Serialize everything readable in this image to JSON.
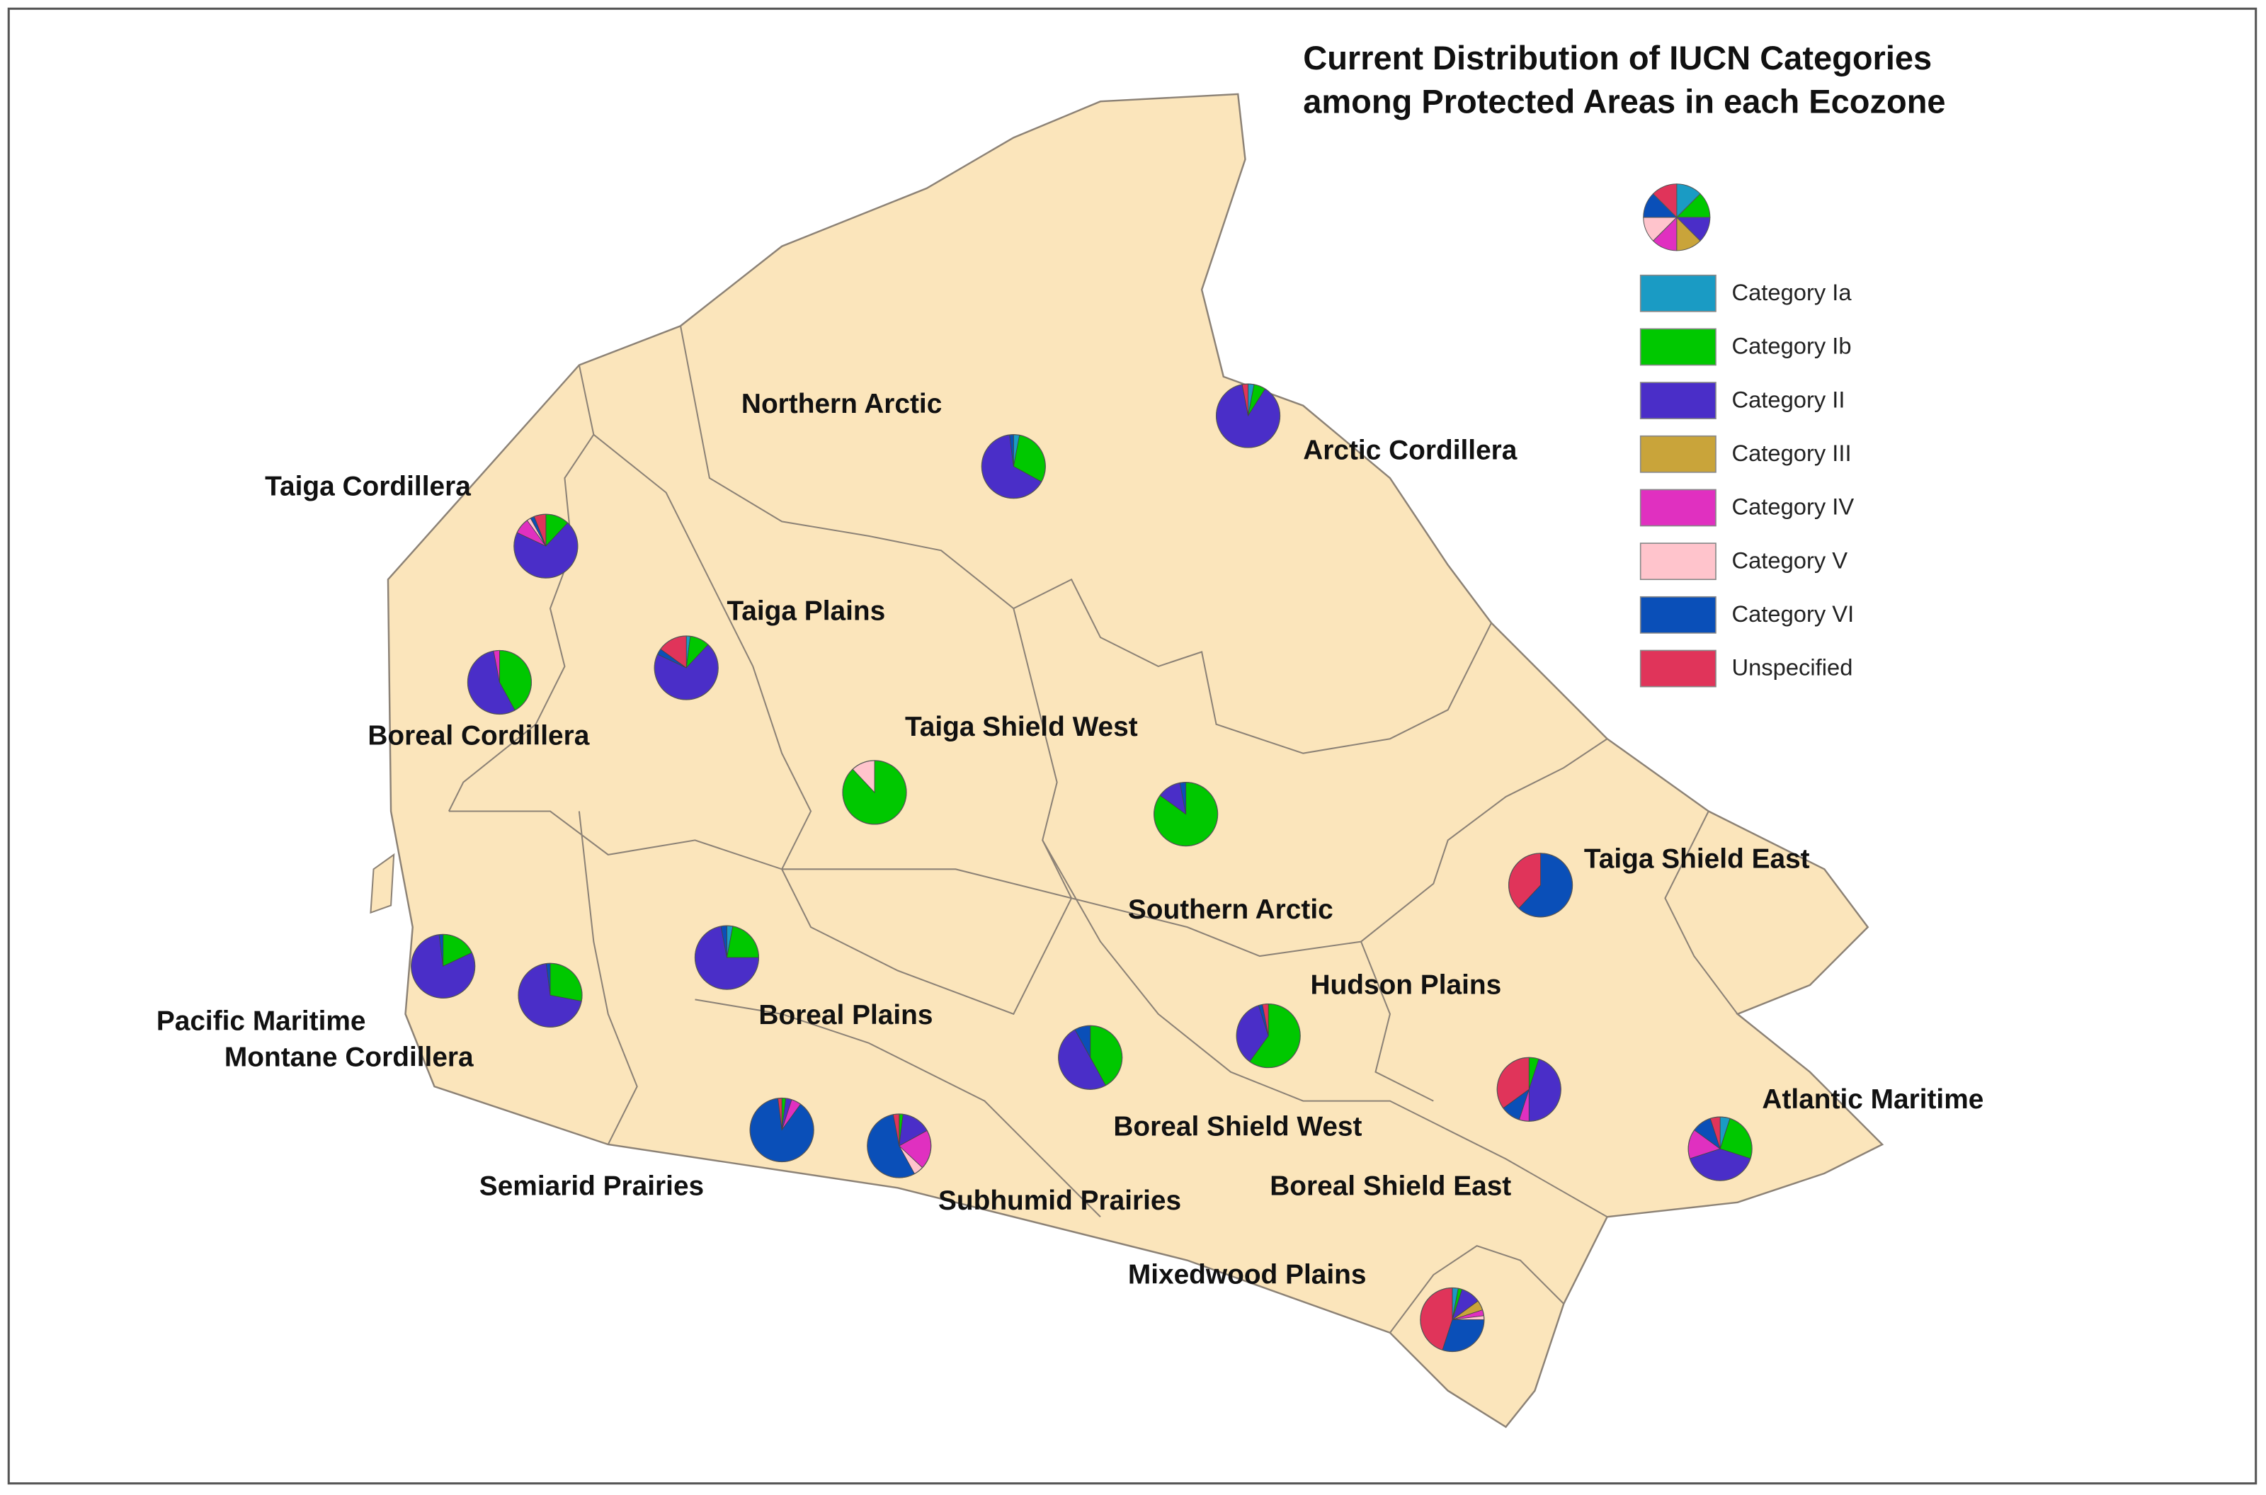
{
  "title": [
    "Current Distribution of IUCN Categories",
    "among Protected Areas in each Ecozone"
  ],
  "legend": [
    {
      "label": "Category Ia",
      "color": "#1a9bc4"
    },
    {
      "label": "Category Ib",
      "color": "#00c800"
    },
    {
      "label": "Category II",
      "color": "#4a2ec8"
    },
    {
      "label": "Category III",
      "color": "#c9a43a"
    },
    {
      "label": "Category IV",
      "color": "#e030c0"
    },
    {
      "label": "Category V",
      "color": "#ffc4cc"
    },
    {
      "label": "Category VI",
      "color": "#0a4fb8"
    },
    {
      "label": "Unspecified",
      "color": "#e0345a"
    }
  ],
  "ecozones": [
    {
      "name": "Northern Arctic",
      "shares": [
        3,
        30,
        65,
        0,
        0,
        0,
        2,
        0
      ]
    },
    {
      "name": "Arctic Cordillera",
      "shares": [
        3,
        6,
        88,
        0,
        0,
        0,
        0,
        3
      ]
    },
    {
      "name": "Taiga Cordillera",
      "shares": [
        0,
        12,
        70,
        0,
        8,
        2,
        2,
        6
      ]
    },
    {
      "name": "Taiga Plains",
      "shares": [
        2,
        10,
        70,
        0,
        0,
        0,
        3,
        15
      ]
    },
    {
      "name": "Boreal Cordillera",
      "shares": [
        0,
        42,
        55,
        0,
        3,
        0,
        0,
        0
      ]
    },
    {
      "name": "Taiga Shield West",
      "shares": [
        0,
        88,
        0,
        0,
        0,
        12,
        0,
        0
      ]
    },
    {
      "name": "Southern Arctic",
      "shares": [
        0,
        85,
        12,
        0,
        0,
        0,
        3,
        0
      ]
    },
    {
      "name": "Taiga Shield East",
      "shares": [
        0,
        0,
        0,
        0,
        0,
        0,
        62,
        38
      ]
    },
    {
      "name": "Pacific Maritime",
      "shares": [
        0,
        18,
        80,
        0,
        0,
        0,
        2,
        0
      ]
    },
    {
      "name": "Montane Cordillera",
      "shares": [
        0,
        28,
        70,
        0,
        0,
        0,
        2,
        0
      ]
    },
    {
      "name": "Boreal Plains",
      "shares": [
        3,
        22,
        72,
        0,
        0,
        0,
        3,
        0
      ]
    },
    {
      "name": "Boreal Shield West",
      "shares": [
        0,
        42,
        50,
        0,
        0,
        0,
        8,
        0
      ]
    },
    {
      "name": "Hudson Plains",
      "shares": [
        0,
        60,
        35,
        0,
        0,
        0,
        2,
        3
      ]
    },
    {
      "name": "Semiarid Prairies",
      "shares": [
        0,
        2,
        3,
        0,
        5,
        0,
        88,
        2
      ]
    },
    {
      "name": "Subhumid Prairies",
      "shares": [
        0,
        2,
        15,
        0,
        20,
        5,
        55,
        3
      ]
    },
    {
      "name": "Boreal Shield East",
      "shares": [
        0,
        5,
        45,
        0,
        5,
        0,
        10,
        35
      ]
    },
    {
      "name": "Atlantic Maritime",
      "shares": [
        5,
        25,
        40,
        0,
        15,
        0,
        10,
        5
      ]
    },
    {
      "name": "Mixedwood Plains",
      "shares": [
        3,
        2,
        10,
        5,
        3,
        2,
        30,
        45
      ]
    }
  ]
}
